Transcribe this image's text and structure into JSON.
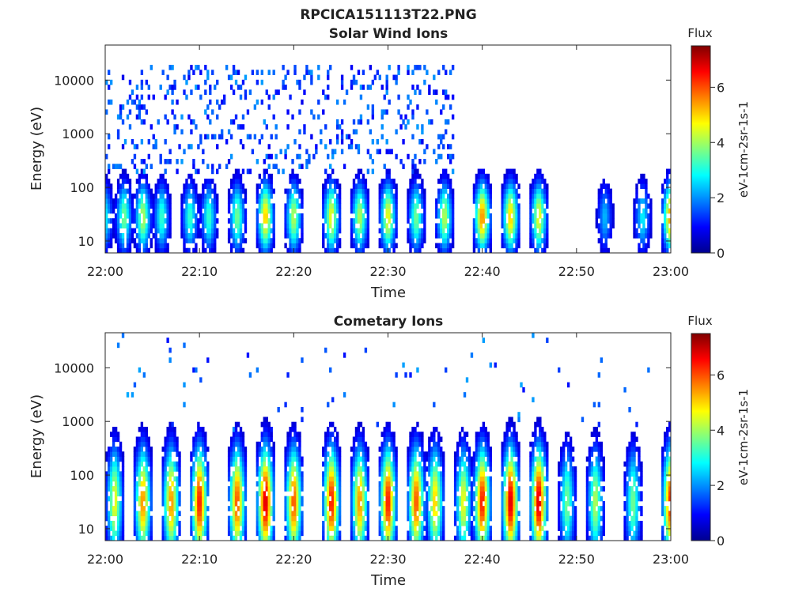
{
  "figure": {
    "title": "RPCICA151113T22.PNG"
  },
  "chart_data": [
    {
      "type": "heatmap",
      "title": "Solar Wind Ions",
      "xlabel": "Time",
      "ylabel": "Energy (eV)",
      "x_ticks": [
        "22:00",
        "22:10",
        "22:20",
        "22:30",
        "22:40",
        "22:50",
        "23:00"
      ],
      "y_ticks": [
        "10",
        "100",
        "1000",
        "10000"
      ],
      "y_scale": "log",
      "ylim": [
        6,
        45000
      ],
      "xlim": [
        "22:00",
        "23:00"
      ],
      "colorbar": {
        "title": "Flux",
        "label": "eV-1cm-2sr-1s-1",
        "ticks": [
          "0",
          "2",
          "4",
          "6"
        ],
        "range": [
          0,
          7.5
        ],
        "colormap": "jet"
      },
      "description_of_data": "Sparse blue (~1-2) counts at 200-20000 eV until ~22:37; cyan/green (~3-4) 10-100 eV columns; yellow/orange (~5-6) spots near 20-50 eV at ~22:05, 22:17, 22:24, 22:30, 22:40, 22:43, 23:00",
      "bursts_minutes": [
        0,
        2,
        4,
        6,
        9,
        11,
        14,
        17,
        20,
        24,
        27,
        30,
        33,
        36,
        40,
        43,
        46,
        53,
        57,
        60
      ],
      "peak_values": [
        3,
        4,
        4.5,
        3.5,
        3.5,
        3.5,
        4,
        5.5,
        4.5,
        5,
        4.5,
        5,
        4,
        4.5,
        6,
        5.5,
        5,
        2.5,
        3,
        6
      ]
    },
    {
      "type": "heatmap",
      "title": "Cometary Ions",
      "xlabel": "Time",
      "ylabel": "Energy (eV)",
      "x_ticks": [
        "22:00",
        "22:10",
        "22:20",
        "22:30",
        "22:40",
        "22:50",
        "23:00"
      ],
      "y_ticks": [
        "10",
        "100",
        "1000",
        "10000"
      ],
      "y_scale": "log",
      "ylim": [
        6,
        45000
      ],
      "xlim": [
        "22:00",
        "23:00"
      ],
      "colorbar": {
        "title": "Flux",
        "label": "eV-1cm-2sr-1s-1",
        "ticks": [
          "0",
          "2",
          "4",
          "6"
        ],
        "range": [
          0,
          7.5
        ],
        "colormap": "jet"
      },
      "description_of_data": "Periodic bursts every ~3 min extending 10-500 eV; red/orange (~6-7) cores at 15-50 eV; sparse blue points up to ~15000 eV",
      "bursts_minutes": [
        1,
        4,
        7,
        10,
        14,
        17,
        20,
        24,
        27,
        30,
        33,
        35,
        38,
        40,
        43,
        46,
        49,
        52,
        56,
        60
      ],
      "peak_values": [
        5,
        6,
        6,
        7,
        6.5,
        7.5,
        6.5,
        7,
        6,
        7,
        6.5,
        5.5,
        5,
        7,
        7.5,
        7.5,
        4,
        4.5,
        4,
        7
      ]
    }
  ]
}
